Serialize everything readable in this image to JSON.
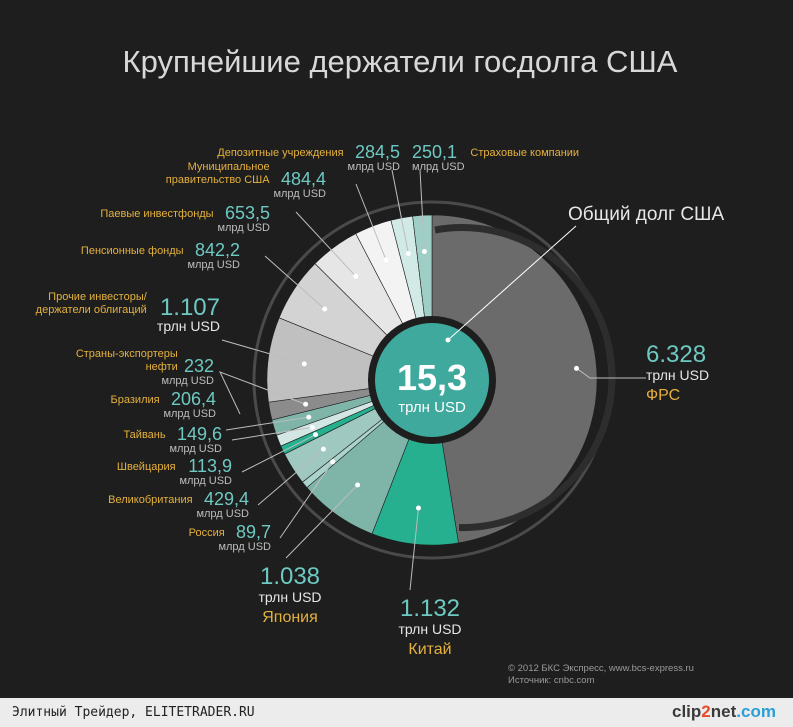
{
  "chart_data": {
    "type": "pie",
    "title": "Крупнейшие держатели госдолга США",
    "center": {
      "value": "15,3",
      "unit": "трлн USD"
    },
    "total_label": "Общий долг США",
    "unit_bln": "млрд USD",
    "unit_trln": "трлн USD",
    "slices": [
      {
        "name": "ФРС",
        "value": 6328,
        "display": "6.328",
        "unit": "трлн USD",
        "color": "#6b6b6b"
      },
      {
        "name": "Китай",
        "value": 1132,
        "display": "1.132",
        "unit": "трлн USD",
        "color": "#26b08f"
      },
      {
        "name": "Япония",
        "value": 1038,
        "display": "1.038",
        "unit": "трлн USD",
        "color": "#7fb5a9"
      },
      {
        "name": "Россия",
        "value": 89.7,
        "display": "89,7",
        "unit": "млрд USD",
        "color": "#a9d3cc"
      },
      {
        "name": "Великобритания",
        "value": 429.4,
        "display": "429,4",
        "unit": "млрд USD",
        "color": "#9fc8c0"
      },
      {
        "name": "Швейцария",
        "value": 113.9,
        "display": "113,9",
        "unit": "млрд USD",
        "color": "#26b08f"
      },
      {
        "name": "Тайвань",
        "value": 149.6,
        "display": "149,6",
        "unit": "млрд USD",
        "color": "#d2e7e3"
      },
      {
        "name": "Бразилия",
        "value": 206.4,
        "display": "206,4",
        "unit": "млрд USD",
        "color": "#7fb5a9"
      },
      {
        "name": "Страны-экспортеры нефти",
        "value": 232,
        "display": "232",
        "unit": "млрд USD",
        "color": "#8c8c8c"
      },
      {
        "name": "Прочие инвесторы/ держатели облигаций",
        "value": 1107,
        "display": "1.107",
        "unit": "трлн USD",
        "color": "#c0c0c0"
      },
      {
        "name": "Пенсионные фонды",
        "value": 842.2,
        "display": "842,2",
        "unit": "млрд USD",
        "color": "#d3d3d3"
      },
      {
        "name": "Паевые инвестфонды",
        "value": 653.5,
        "display": "653,5",
        "unit": "млрд USD",
        "color": "#e6e6e6"
      },
      {
        "name": "Муниципальное правительство США",
        "value": 484.4,
        "display": "484,4",
        "unit": "млрд USD",
        "color": "#f3f3f3"
      },
      {
        "name": "Депозитные учреждения",
        "value": 284.5,
        "display": "284,5",
        "unit": "млрд USD",
        "color": "#d2eae6"
      },
      {
        "name": "Страховые компании",
        "value": 250.1,
        "display": "250,1",
        "unit": "млрд USD",
        "color": "#9fcec6"
      }
    ],
    "credits": [
      "© 2012 БКС Экспресс, www.bcs-express.ru",
      "Источник: cnbc.com"
    ]
  },
  "footer": {
    "left": "Элитный Трейдер, ELITETRADER.RU",
    "logo_a": "clip",
    "logo_b": "2",
    "logo_c": "net",
    "logo_d": ".com"
  }
}
